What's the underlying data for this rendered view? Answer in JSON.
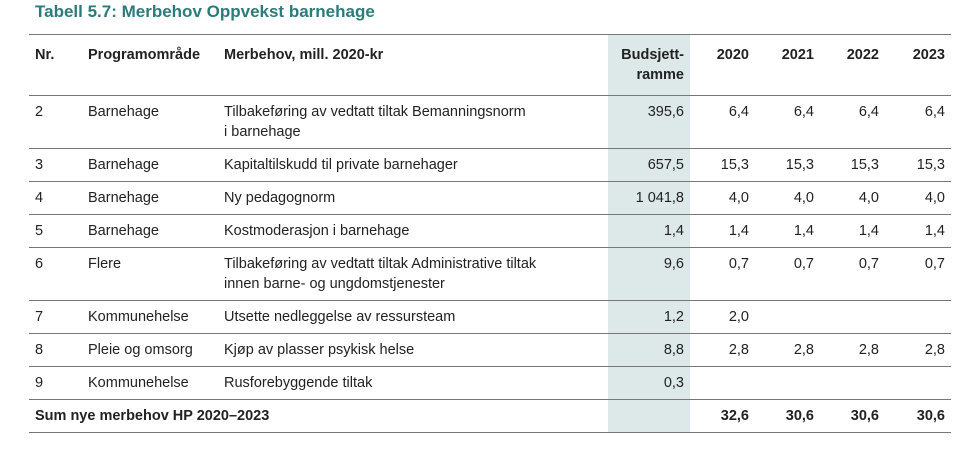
{
  "title": "Tabell 5.7: Merbehov Oppvekst barnehage",
  "headers": {
    "nr": "Nr.",
    "area": "Programområde",
    "need": "Merbehov, mill. 2020-kr",
    "budget_1": "Budsjett-",
    "budget_2": "ramme",
    "y2020": "2020",
    "y2021": "2021",
    "y2022": "2022",
    "y2023": "2023"
  },
  "rows": [
    {
      "nr": "2",
      "area": "Barnehage",
      "need_1": "Tilbakeføring av vedtatt tiltak Bemanningsnorm",
      "need_2": "i barnehage",
      "budget": "395,6",
      "y2020": "6,4",
      "y2021": "6,4",
      "y2022": "6,4",
      "y2023": "6,4"
    },
    {
      "nr": "3",
      "area": "Barnehage",
      "need_1": "Kapitaltilskudd til private barnehager",
      "need_2": "",
      "budget": "657,5",
      "y2020": "15,3",
      "y2021": "15,3",
      "y2022": "15,3",
      "y2023": "15,3"
    },
    {
      "nr": "4",
      "area": "Barnehage",
      "need_1": "Ny pedagognorm",
      "need_2": "",
      "budget": "1 041,8",
      "y2020": "4,0",
      "y2021": "4,0",
      "y2022": "4,0",
      "y2023": "4,0"
    },
    {
      "nr": "5",
      "area": "Barnehage",
      "need_1": "Kostmoderasjon i barnehage",
      "need_2": "",
      "budget": "1,4",
      "y2020": "1,4",
      "y2021": "1,4",
      "y2022": "1,4",
      "y2023": "1,4"
    },
    {
      "nr": "6",
      "area": "Flere",
      "need_1": "Tilbakeføring av vedtatt tiltak Administrative tiltak",
      "need_2": "innen barne- og ungdomstjenester",
      "budget": "9,6",
      "y2020": "0,7",
      "y2021": "0,7",
      "y2022": "0,7",
      "y2023": "0,7"
    },
    {
      "nr": "7",
      "area": "Kommunehelse",
      "need_1": "Utsette nedleggelse av ressursteam",
      "need_2": "",
      "budget": "1,2",
      "y2020": "2,0",
      "y2021": "",
      "y2022": "",
      "y2023": ""
    },
    {
      "nr": "8",
      "area": "Pleie og omsorg",
      "need_1": "Kjøp av plasser psykisk helse",
      "need_2": "",
      "budget": "8,8",
      "y2020": "2,8",
      "y2021": "2,8",
      "y2022": "2,8",
      "y2023": "2,8"
    },
    {
      "nr": "9",
      "area": "Kommunehelse",
      "need_1": "Rusforebyggende tiltak",
      "need_2": "",
      "budget": "0,3",
      "y2020": "",
      "y2021": "",
      "y2022": "",
      "y2023": ""
    }
  ],
  "sum": {
    "label": "Sum nye merbehov HP 2020–2023",
    "budget": "",
    "y2020": "32,6",
    "y2021": "30,6",
    "y2022": "30,6",
    "y2023": "30,6"
  }
}
